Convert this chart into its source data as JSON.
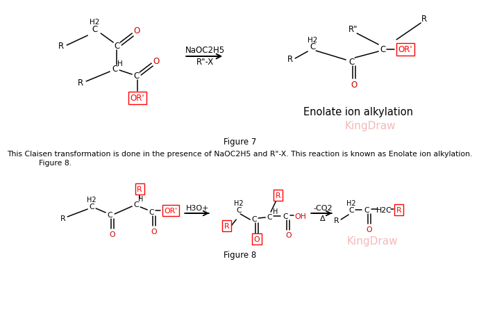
{
  "bg_color": "#ffffff",
  "red_color": "#cc0000",
  "kingdraw_color": "#f5b8b8",
  "figure7_label": "Figure 7",
  "figure8_label": "Figure 8",
  "caption_line1": "This Claisen transformation is done in the presence of NaOC2H5 and R\"-X. This reaction is known as Enolate ion alkylation.",
  "caption_line2": "Figure 8.",
  "enolate_label": "Enolate ion alkylation",
  "kingdraw_label": "KingDraw",
  "reagent1": "NaOC2H5",
  "reagent2": "R\"-X",
  "arrow_h3o": "H3O+",
  "arrow_co2": "-CO2",
  "arrow_delta": "Δ"
}
